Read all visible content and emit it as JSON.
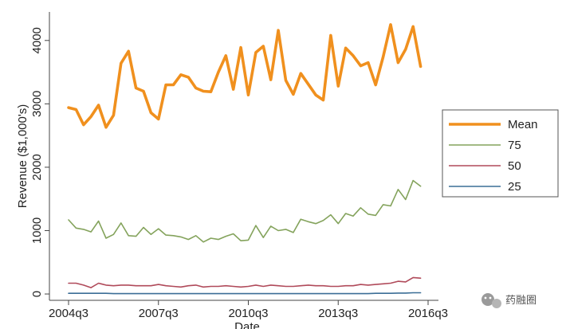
{
  "chart_data": {
    "type": "line",
    "title": "",
    "xlabel": "Date",
    "ylabel": "Revenue ($1,000's)",
    "x_tick_labels": [
      "2004q3",
      "2007q3",
      "2010q3",
      "2013q3",
      "2016q3"
    ],
    "x_tick_positions": [
      0,
      12,
      24,
      36,
      48
    ],
    "x_range": [
      0,
      48
    ],
    "y_ticks": [
      0,
      1000,
      2000,
      3000,
      4000
    ],
    "ylim": [
      -100,
      4450
    ],
    "grid": false,
    "legend_position": "right",
    "series": [
      {
        "name": "Mean",
        "color": "#f0901e",
        "values": [
          2940,
          2910,
          2670,
          2800,
          2980,
          2630,
          2820,
          3640,
          3830,
          3250,
          3200,
          2860,
          2760,
          3300,
          3300,
          3460,
          3420,
          3250,
          3200,
          3190,
          3500,
          3760,
          3230,
          3890,
          3140,
          3810,
          3910,
          3380,
          4160,
          3370,
          3150,
          3480,
          3310,
          3140,
          3060,
          4080,
          3280,
          3880,
          3760,
          3600,
          3650,
          3300,
          3740,
          4250,
          3650,
          3860,
          4220,
          3590
        ]
      },
      {
        "name": "75",
        "color": "#84a35c",
        "values": [
          1170,
          1040,
          1020,
          980,
          1150,
          880,
          940,
          1120,
          920,
          910,
          1050,
          940,
          1030,
          930,
          920,
          900,
          860,
          920,
          820,
          880,
          860,
          910,
          950,
          840,
          850,
          1080,
          890,
          1070,
          1000,
          1020,
          970,
          1180,
          1140,
          1110,
          1160,
          1250,
          1110,
          1270,
          1230,
          1360,
          1260,
          1240,
          1410,
          1390,
          1650,
          1490,
          1790,
          1700
        ]
      },
      {
        "name": "50",
        "color": "#b04a5a",
        "values": [
          170,
          170,
          140,
          100,
          170,
          140,
          130,
          140,
          140,
          130,
          130,
          130,
          150,
          130,
          120,
          110,
          130,
          140,
          110,
          120,
          120,
          130,
          120,
          110,
          120,
          140,
          120,
          140,
          130,
          120,
          120,
          130,
          140,
          130,
          130,
          120,
          120,
          130,
          130,
          150,
          140,
          150,
          160,
          170,
          200,
          190,
          260,
          250
        ]
      },
      {
        "name": "25",
        "color": "#3b6e96",
        "values": [
          10,
          10,
          10,
          10,
          10,
          10,
          5,
          5,
          5,
          5,
          5,
          5,
          5,
          5,
          5,
          5,
          5,
          5,
          5,
          5,
          5,
          5,
          5,
          5,
          5,
          5,
          5,
          5,
          5,
          5,
          5,
          5,
          5,
          5,
          5,
          5,
          5,
          5,
          5,
          5,
          5,
          10,
          10,
          10,
          15,
          15,
          20,
          20
        ]
      }
    ]
  },
  "watermark": {
    "icon": "wechat-icon",
    "text": "药融圈"
  }
}
